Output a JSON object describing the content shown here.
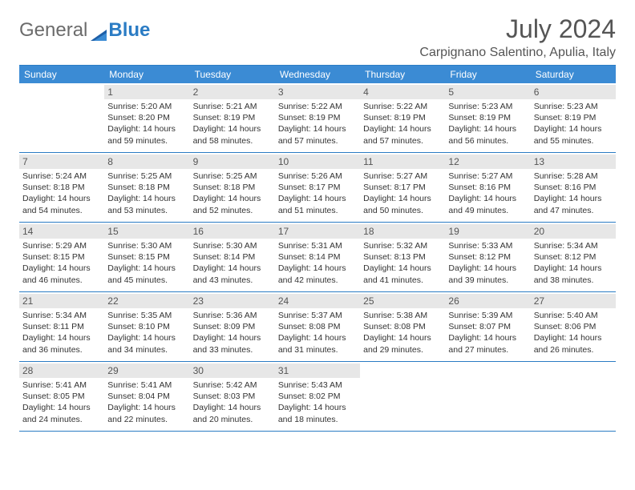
{
  "logo": {
    "general": "General",
    "blue": "Blue"
  },
  "title": "July 2024",
  "location": "Carpignano Salentino, Apulia, Italy",
  "colors": {
    "header_bg": "#3b8bd4",
    "header_text": "#ffffff",
    "rule": "#2b7cc4",
    "daynum_bg": "#e7e7e7",
    "body_text": "#333333",
    "title_text": "#555555"
  },
  "day_labels": [
    "Sunday",
    "Monday",
    "Tuesday",
    "Wednesday",
    "Thursday",
    "Friday",
    "Saturday"
  ],
  "weeks": [
    [
      {
        "n": "",
        "sunrise": "",
        "sunset": "",
        "daylight": ""
      },
      {
        "n": "1",
        "sunrise": "5:20 AM",
        "sunset": "8:20 PM",
        "daylight": "14 hours and 59 minutes."
      },
      {
        "n": "2",
        "sunrise": "5:21 AM",
        "sunset": "8:19 PM",
        "daylight": "14 hours and 58 minutes."
      },
      {
        "n": "3",
        "sunrise": "5:22 AM",
        "sunset": "8:19 PM",
        "daylight": "14 hours and 57 minutes."
      },
      {
        "n": "4",
        "sunrise": "5:22 AM",
        "sunset": "8:19 PM",
        "daylight": "14 hours and 57 minutes."
      },
      {
        "n": "5",
        "sunrise": "5:23 AM",
        "sunset": "8:19 PM",
        "daylight": "14 hours and 56 minutes."
      },
      {
        "n": "6",
        "sunrise": "5:23 AM",
        "sunset": "8:19 PM",
        "daylight": "14 hours and 55 minutes."
      }
    ],
    [
      {
        "n": "7",
        "sunrise": "5:24 AM",
        "sunset": "8:18 PM",
        "daylight": "14 hours and 54 minutes."
      },
      {
        "n": "8",
        "sunrise": "5:25 AM",
        "sunset": "8:18 PM",
        "daylight": "14 hours and 53 minutes."
      },
      {
        "n": "9",
        "sunrise": "5:25 AM",
        "sunset": "8:18 PM",
        "daylight": "14 hours and 52 minutes."
      },
      {
        "n": "10",
        "sunrise": "5:26 AM",
        "sunset": "8:17 PM",
        "daylight": "14 hours and 51 minutes."
      },
      {
        "n": "11",
        "sunrise": "5:27 AM",
        "sunset": "8:17 PM",
        "daylight": "14 hours and 50 minutes."
      },
      {
        "n": "12",
        "sunrise": "5:27 AM",
        "sunset": "8:16 PM",
        "daylight": "14 hours and 49 minutes."
      },
      {
        "n": "13",
        "sunrise": "5:28 AM",
        "sunset": "8:16 PM",
        "daylight": "14 hours and 47 minutes."
      }
    ],
    [
      {
        "n": "14",
        "sunrise": "5:29 AM",
        "sunset": "8:15 PM",
        "daylight": "14 hours and 46 minutes."
      },
      {
        "n": "15",
        "sunrise": "5:30 AM",
        "sunset": "8:15 PM",
        "daylight": "14 hours and 45 minutes."
      },
      {
        "n": "16",
        "sunrise": "5:30 AM",
        "sunset": "8:14 PM",
        "daylight": "14 hours and 43 minutes."
      },
      {
        "n": "17",
        "sunrise": "5:31 AM",
        "sunset": "8:14 PM",
        "daylight": "14 hours and 42 minutes."
      },
      {
        "n": "18",
        "sunrise": "5:32 AM",
        "sunset": "8:13 PM",
        "daylight": "14 hours and 41 minutes."
      },
      {
        "n": "19",
        "sunrise": "5:33 AM",
        "sunset": "8:12 PM",
        "daylight": "14 hours and 39 minutes."
      },
      {
        "n": "20",
        "sunrise": "5:34 AM",
        "sunset": "8:12 PM",
        "daylight": "14 hours and 38 minutes."
      }
    ],
    [
      {
        "n": "21",
        "sunrise": "5:34 AM",
        "sunset": "8:11 PM",
        "daylight": "14 hours and 36 minutes."
      },
      {
        "n": "22",
        "sunrise": "5:35 AM",
        "sunset": "8:10 PM",
        "daylight": "14 hours and 34 minutes."
      },
      {
        "n": "23",
        "sunrise": "5:36 AM",
        "sunset": "8:09 PM",
        "daylight": "14 hours and 33 minutes."
      },
      {
        "n": "24",
        "sunrise": "5:37 AM",
        "sunset": "8:08 PM",
        "daylight": "14 hours and 31 minutes."
      },
      {
        "n": "25",
        "sunrise": "5:38 AM",
        "sunset": "8:08 PM",
        "daylight": "14 hours and 29 minutes."
      },
      {
        "n": "26",
        "sunrise": "5:39 AM",
        "sunset": "8:07 PM",
        "daylight": "14 hours and 27 minutes."
      },
      {
        "n": "27",
        "sunrise": "5:40 AM",
        "sunset": "8:06 PM",
        "daylight": "14 hours and 26 minutes."
      }
    ],
    [
      {
        "n": "28",
        "sunrise": "5:41 AM",
        "sunset": "8:05 PM",
        "daylight": "14 hours and 24 minutes."
      },
      {
        "n": "29",
        "sunrise": "5:41 AM",
        "sunset": "8:04 PM",
        "daylight": "14 hours and 22 minutes."
      },
      {
        "n": "30",
        "sunrise": "5:42 AM",
        "sunset": "8:03 PM",
        "daylight": "14 hours and 20 minutes."
      },
      {
        "n": "31",
        "sunrise": "5:43 AM",
        "sunset": "8:02 PM",
        "daylight": "14 hours and 18 minutes."
      },
      {
        "n": "",
        "sunrise": "",
        "sunset": "",
        "daylight": ""
      },
      {
        "n": "",
        "sunrise": "",
        "sunset": "",
        "daylight": ""
      },
      {
        "n": "",
        "sunrise": "",
        "sunset": "",
        "daylight": ""
      }
    ]
  ],
  "labels": {
    "sunrise": "Sunrise: ",
    "sunset": "Sunset: ",
    "daylight": "Daylight: "
  }
}
